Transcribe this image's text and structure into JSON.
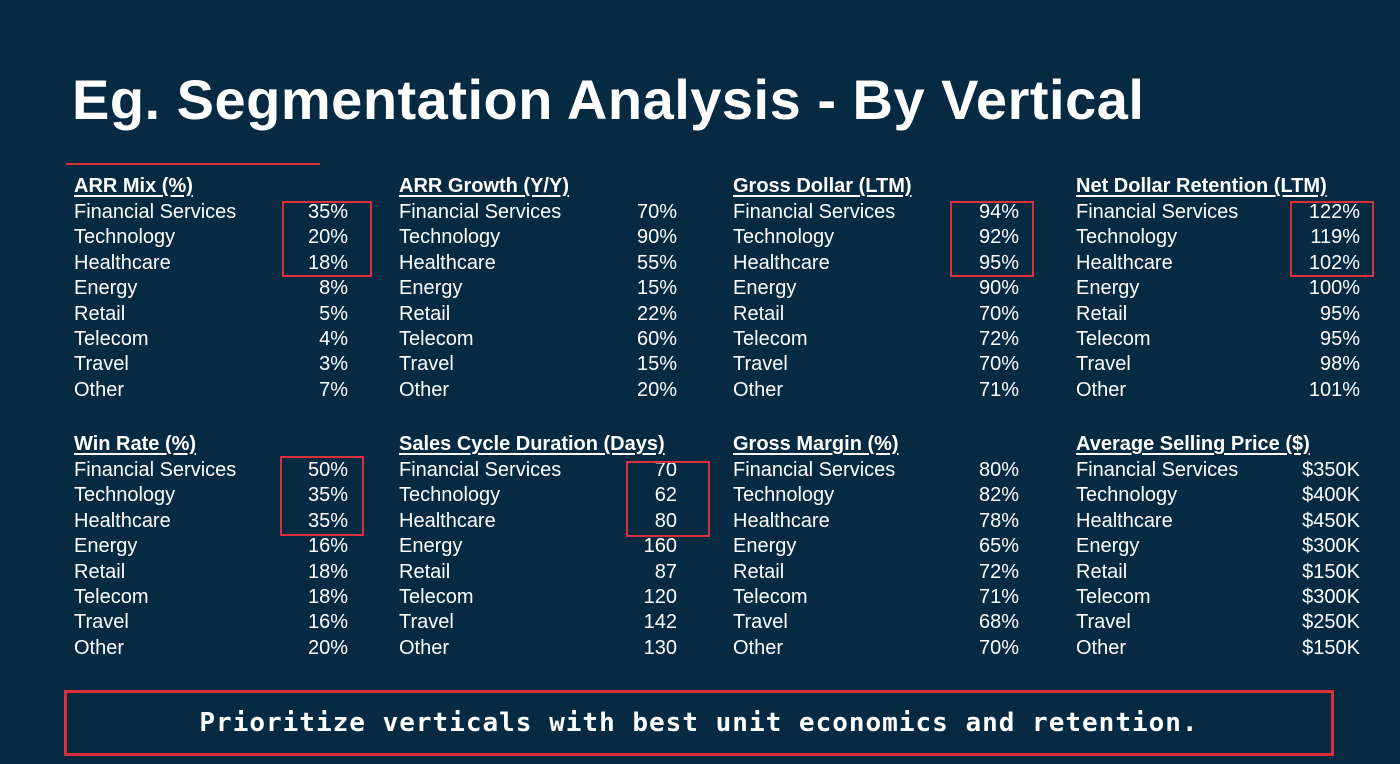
{
  "title": "Eg. Segmentation Analysis - By Vertical",
  "colors": {
    "background": "#062a42",
    "text": "#ffffff",
    "highlight": "#d9303a"
  },
  "blocks": [
    {
      "heading": "ARR Mix (%)",
      "rows": [
        {
          "label": "Financial Services",
          "value": "35%"
        },
        {
          "label": "Technology",
          "value": "20%"
        },
        {
          "label": "Healthcare",
          "value": "18%"
        },
        {
          "label": "Energy",
          "value": "8%"
        },
        {
          "label": "Retail",
          "value": "5%"
        },
        {
          "label": "Telecom",
          "value": "4%"
        },
        {
          "label": "Travel",
          "value": "3%"
        },
        {
          "label": "Other",
          "value": "7%"
        }
      ]
    },
    {
      "heading": "ARR Growth (Y/Y)",
      "rows": [
        {
          "label": "Financial Services",
          "value": "70%"
        },
        {
          "label": "Technology",
          "value": "90%"
        },
        {
          "label": "Healthcare",
          "value": "55%"
        },
        {
          "label": "Energy",
          "value": "15%"
        },
        {
          "label": "Retail",
          "value": "22%"
        },
        {
          "label": "Telecom",
          "value": "60%"
        },
        {
          "label": "Travel",
          "value": "15%"
        },
        {
          "label": "Other",
          "value": "20%"
        }
      ]
    },
    {
      "heading": "Gross Dollar (LTM)",
      "rows": [
        {
          "label": "Financial Services",
          "value": "94%"
        },
        {
          "label": "Technology",
          "value": "92%"
        },
        {
          "label": "Healthcare",
          "value": "95%"
        },
        {
          "label": "Energy",
          "value": "90%"
        },
        {
          "label": "Retail",
          "value": "70%"
        },
        {
          "label": "Telecom",
          "value": "72%"
        },
        {
          "label": "Travel",
          "value": "70%"
        },
        {
          "label": "Other",
          "value": "71%"
        }
      ]
    },
    {
      "heading": "Net Dollar Retention (LTM)",
      "rows": [
        {
          "label": "Financial Services",
          "value": "122%"
        },
        {
          "label": "Technology",
          "value": "119%"
        },
        {
          "label": "Healthcare",
          "value": "102%"
        },
        {
          "label": "Energy",
          "value": "100%"
        },
        {
          "label": "Retail",
          "value": "95%"
        },
        {
          "label": "Telecom",
          "value": "95%"
        },
        {
          "label": "Travel",
          "value": "98%"
        },
        {
          "label": "Other",
          "value": "101%"
        }
      ]
    },
    {
      "heading": "Win Rate (%)",
      "rows": [
        {
          "label": "Financial Services",
          "value": "50%"
        },
        {
          "label": "Technology",
          "value": "35%"
        },
        {
          "label": "Healthcare",
          "value": "35%"
        },
        {
          "label": "Energy",
          "value": "16%"
        },
        {
          "label": "Retail",
          "value": "18%"
        },
        {
          "label": "Telecom",
          "value": "18%"
        },
        {
          "label": "Travel",
          "value": "16%"
        },
        {
          "label": "Other",
          "value": "20%"
        }
      ]
    },
    {
      "heading": "Sales Cycle Duration (Days)",
      "rows": [
        {
          "label": "Financial Services",
          "value": "70"
        },
        {
          "label": "Technology",
          "value": "62"
        },
        {
          "label": "Healthcare",
          "value": "80"
        },
        {
          "label": "Energy",
          "value": "160"
        },
        {
          "label": "Retail",
          "value": "87"
        },
        {
          "label": "Telecom",
          "value": "120"
        },
        {
          "label": "Travel",
          "value": "142"
        },
        {
          "label": "Other",
          "value": "130"
        }
      ]
    },
    {
      "heading": "Gross Margin (%)",
      "rows": [
        {
          "label": "Financial Services",
          "value": "80%"
        },
        {
          "label": "Technology",
          "value": "82%"
        },
        {
          "label": "Healthcare",
          "value": "78%"
        },
        {
          "label": "Energy",
          "value": "65%"
        },
        {
          "label": "Retail",
          "value": "72%"
        },
        {
          "label": "Telecom",
          "value": "71%"
        },
        {
          "label": "Travel",
          "value": "68%"
        },
        {
          "label": "Other",
          "value": "70%"
        }
      ]
    },
    {
      "heading": "Average Selling Price ($)",
      "rows": [
        {
          "label": "Financial Services",
          "value": "$350K"
        },
        {
          "label": "Technology",
          "value": "$400K"
        },
        {
          "label": "Healthcare",
          "value": "$450K"
        },
        {
          "label": "Energy",
          "value": "$300K"
        },
        {
          "label": "Retail",
          "value": "$150K"
        },
        {
          "label": "Telecom",
          "value": "$300K"
        },
        {
          "label": "Travel",
          "value": "$250K"
        },
        {
          "label": "Other",
          "value": "$150K"
        }
      ]
    }
  ],
  "callout": "Prioritize verticals with best unit economics and retention."
}
